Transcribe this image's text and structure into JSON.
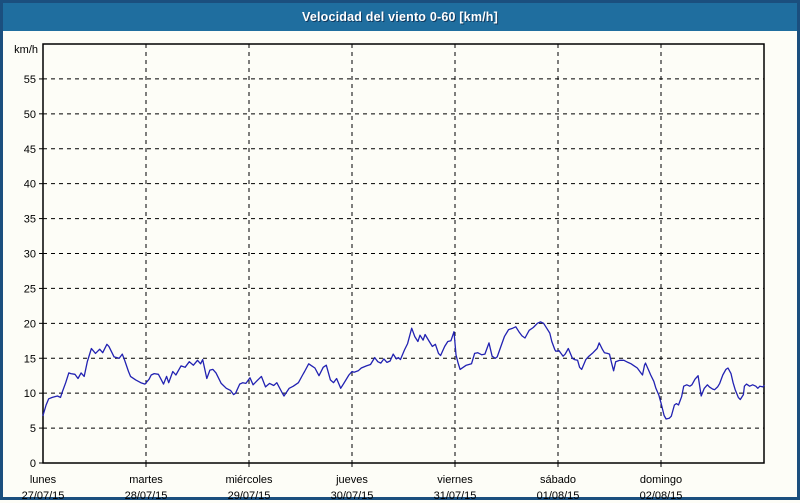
{
  "window": {
    "title": "Velocidad del viento 0-60 [km/h]"
  },
  "colors": {
    "title_bar": "#1f6e9f",
    "frame": "#1b4f7e",
    "line": "#2222b2",
    "grid": "#000000",
    "background": "#fdfdf7"
  },
  "chart_data": {
    "type": "line",
    "title": "Velocidad del viento 0-60 [km/h]",
    "ylabel": "km/h",
    "xlabel": "",
    "ylim": [
      0,
      60
    ],
    "y_ticks": [
      0,
      5,
      10,
      15,
      20,
      25,
      30,
      35,
      40,
      45,
      50,
      55
    ],
    "grid": "dashed",
    "legend": "none",
    "x_axis_days": [
      {
        "name": "lunes",
        "date": "27/07/15"
      },
      {
        "name": "martes",
        "date": "28/07/15"
      },
      {
        "name": "miércoles",
        "date": "29/07/15"
      },
      {
        "name": "jueves",
        "date": "30/07/15"
      },
      {
        "name": "viernes",
        "date": "31/07/15"
      },
      {
        "name": "sábado",
        "date": "01/08/15"
      },
      {
        "name": "domingo",
        "date": "02/08/15"
      }
    ],
    "series": [
      {
        "name": "Velocidad del viento",
        "color": "#2222b2",
        "x_unit": "days (0 = lunes 27/07/15 00:00)",
        "points": [
          [
            0.0,
            6.8
          ],
          [
            0.03,
            8.3
          ],
          [
            0.055,
            9.2
          ],
          [
            0.09,
            9.4
          ],
          [
            0.14,
            9.6
          ],
          [
            0.17,
            9.4
          ],
          [
            0.19,
            10.3
          ],
          [
            0.22,
            11.5
          ],
          [
            0.25,
            12.9
          ],
          [
            0.27,
            12.8
          ],
          [
            0.31,
            12.7
          ],
          [
            0.34,
            12.1
          ],
          [
            0.37,
            12.9
          ],
          [
            0.4,
            12.4
          ],
          [
            0.43,
            14.5
          ],
          [
            0.47,
            16.4
          ],
          [
            0.51,
            15.7
          ],
          [
            0.55,
            16.3
          ],
          [
            0.58,
            15.8
          ],
          [
            0.62,
            17.0
          ],
          [
            0.64,
            16.7
          ],
          [
            0.69,
            15.2
          ],
          [
            0.74,
            15.0
          ],
          [
            0.77,
            15.6
          ],
          [
            0.79,
            14.8
          ],
          [
            0.83,
            13.1
          ],
          [
            0.85,
            12.4
          ],
          [
            0.9,
            11.9
          ],
          [
            0.95,
            11.5
          ],
          [
            0.99,
            11.3
          ],
          [
            1.03,
            12.0
          ],
          [
            1.05,
            12.6
          ],
          [
            1.08,
            12.8
          ],
          [
            1.12,
            12.7
          ],
          [
            1.15,
            11.9
          ],
          [
            1.17,
            11.3
          ],
          [
            1.2,
            12.4
          ],
          [
            1.22,
            11.5
          ],
          [
            1.26,
            13.1
          ],
          [
            1.29,
            12.6
          ],
          [
            1.34,
            13.9
          ],
          [
            1.38,
            13.7
          ],
          [
            1.42,
            14.5
          ],
          [
            1.46,
            14.0
          ],
          [
            1.5,
            14.7
          ],
          [
            1.53,
            14.2
          ],
          [
            1.55,
            14.8
          ],
          [
            1.59,
            12.1
          ],
          [
            1.62,
            13.3
          ],
          [
            1.65,
            13.4
          ],
          [
            1.68,
            12.9
          ],
          [
            1.73,
            11.4
          ],
          [
            1.78,
            10.7
          ],
          [
            1.82,
            10.4
          ],
          [
            1.85,
            9.8
          ],
          [
            1.87,
            10.0
          ],
          [
            1.91,
            11.3
          ],
          [
            1.94,
            11.5
          ],
          [
            1.97,
            11.4
          ],
          [
            2.01,
            12.2
          ],
          [
            2.04,
            11.2
          ],
          [
            2.08,
            11.8
          ],
          [
            2.12,
            12.4
          ],
          [
            2.16,
            10.9
          ],
          [
            2.2,
            11.4
          ],
          [
            2.24,
            11.1
          ],
          [
            2.27,
            11.5
          ],
          [
            2.32,
            10.1
          ],
          [
            2.34,
            9.6
          ],
          [
            2.39,
            10.7
          ],
          [
            2.43,
            11.0
          ],
          [
            2.48,
            11.5
          ],
          [
            2.52,
            12.6
          ],
          [
            2.54,
            13.1
          ],
          [
            2.58,
            14.2
          ],
          [
            2.61,
            13.9
          ],
          [
            2.64,
            13.6
          ],
          [
            2.68,
            12.5
          ],
          [
            2.72,
            13.7
          ],
          [
            2.75,
            14.0
          ],
          [
            2.79,
            11.9
          ],
          [
            2.82,
            11.5
          ],
          [
            2.85,
            12.1
          ],
          [
            2.89,
            10.7
          ],
          [
            2.92,
            11.4
          ],
          [
            2.97,
            12.6
          ],
          [
            3.0,
            13.1
          ],
          [
            3.02,
            13.0
          ],
          [
            3.06,
            13.2
          ],
          [
            3.09,
            13.6
          ],
          [
            3.14,
            13.9
          ],
          [
            3.18,
            14.1
          ],
          [
            3.22,
            15.1
          ],
          [
            3.25,
            14.5
          ],
          [
            3.28,
            14.3
          ],
          [
            3.31,
            14.9
          ],
          [
            3.34,
            14.4
          ],
          [
            3.37,
            14.6
          ],
          [
            3.4,
            15.6
          ],
          [
            3.43,
            14.9
          ],
          [
            3.45,
            15.1
          ],
          [
            3.47,
            14.8
          ],
          [
            3.51,
            16.2
          ],
          [
            3.54,
            17.1
          ],
          [
            3.58,
            19.3
          ],
          [
            3.61,
            18.1
          ],
          [
            3.64,
            17.4
          ],
          [
            3.66,
            18.3
          ],
          [
            3.69,
            17.6
          ],
          [
            3.71,
            18.4
          ],
          [
            3.75,
            17.4
          ],
          [
            3.78,
            16.7
          ],
          [
            3.81,
            17.0
          ],
          [
            3.84,
            15.7
          ],
          [
            3.86,
            15.4
          ],
          [
            3.9,
            16.7
          ],
          [
            3.93,
            17.4
          ],
          [
            3.96,
            17.5
          ],
          [
            3.99,
            18.8
          ],
          [
            4.01,
            15.5
          ],
          [
            4.03,
            14.3
          ],
          [
            4.05,
            13.4
          ],
          [
            4.08,
            13.7
          ],
          [
            4.11,
            14.0
          ],
          [
            4.16,
            14.2
          ],
          [
            4.19,
            15.7
          ],
          [
            4.22,
            15.8
          ],
          [
            4.26,
            15.5
          ],
          [
            4.29,
            15.6
          ],
          [
            4.33,
            17.2
          ],
          [
            4.36,
            15.3
          ],
          [
            4.39,
            15.0
          ],
          [
            4.41,
            15.2
          ],
          [
            4.45,
            16.9
          ],
          [
            4.48,
            18.1
          ],
          [
            4.52,
            19.1
          ],
          [
            4.56,
            19.3
          ],
          [
            4.59,
            19.5
          ],
          [
            4.62,
            18.8
          ],
          [
            4.65,
            18.2
          ],
          [
            4.68,
            17.9
          ],
          [
            4.72,
            19.0
          ],
          [
            4.76,
            19.4
          ],
          [
            4.8,
            20.0
          ],
          [
            4.83,
            20.2
          ],
          [
            4.86,
            20.0
          ],
          [
            4.89,
            19.3
          ],
          [
            4.92,
            18.6
          ],
          [
            4.94,
            17.4
          ],
          [
            4.97,
            16.2
          ],
          [
            4.98,
            16.0
          ],
          [
            5.01,
            16.1
          ],
          [
            5.05,
            15.3
          ],
          [
            5.07,
            15.6
          ],
          [
            5.1,
            16.4
          ],
          [
            5.14,
            15.0
          ],
          [
            5.16,
            14.8
          ],
          [
            5.19,
            14.7
          ],
          [
            5.21,
            13.7
          ],
          [
            5.23,
            13.4
          ],
          [
            5.27,
            14.8
          ],
          [
            5.3,
            15.3
          ],
          [
            5.34,
            15.8
          ],
          [
            5.38,
            16.4
          ],
          [
            5.4,
            17.2
          ],
          [
            5.43,
            16.3
          ],
          [
            5.45,
            15.8
          ],
          [
            5.48,
            15.7
          ],
          [
            5.5,
            15.6
          ],
          [
            5.52,
            14.3
          ],
          [
            5.54,
            13.2
          ],
          [
            5.56,
            14.5
          ],
          [
            5.6,
            14.7
          ],
          [
            5.64,
            14.7
          ],
          [
            5.68,
            14.4
          ],
          [
            5.71,
            14.2
          ],
          [
            5.74,
            13.9
          ],
          [
            5.77,
            13.6
          ],
          [
            5.8,
            13.0
          ],
          [
            5.82,
            12.6
          ],
          [
            5.84,
            14.0
          ],
          [
            5.85,
            14.3
          ],
          [
            5.88,
            13.3
          ],
          [
            5.9,
            12.6
          ],
          [
            5.93,
            11.7
          ],
          [
            5.95,
            10.7
          ],
          [
            5.98,
            9.7
          ],
          [
            6.0,
            8.6
          ],
          [
            6.03,
            6.8
          ],
          [
            6.05,
            6.3
          ],
          [
            6.08,
            6.4
          ],
          [
            6.1,
            6.7
          ],
          [
            6.13,
            8.3
          ],
          [
            6.15,
            8.5
          ],
          [
            6.17,
            8.3
          ],
          [
            6.2,
            9.5
          ],
          [
            6.22,
            11.0
          ],
          [
            6.25,
            11.2
          ],
          [
            6.28,
            11.0
          ],
          [
            6.3,
            11.2
          ],
          [
            6.33,
            12.0
          ],
          [
            6.36,
            12.5
          ],
          [
            6.39,
            9.6
          ],
          [
            6.42,
            10.7
          ],
          [
            6.45,
            11.2
          ],
          [
            6.47,
            10.9
          ],
          [
            6.5,
            10.6
          ],
          [
            6.52,
            10.5
          ],
          [
            6.55,
            10.9
          ],
          [
            6.57,
            11.4
          ],
          [
            6.6,
            12.6
          ],
          [
            6.63,
            13.4
          ],
          [
            6.65,
            13.6
          ],
          [
            6.68,
            12.8
          ],
          [
            6.7,
            11.5
          ],
          [
            6.72,
            10.5
          ],
          [
            6.75,
            9.4
          ],
          [
            6.77,
            9.1
          ],
          [
            6.8,
            9.8
          ],
          [
            6.81,
            11.0
          ],
          [
            6.83,
            11.3
          ],
          [
            6.86,
            11.0
          ],
          [
            6.89,
            11.2
          ],
          [
            6.92,
            11.0
          ],
          [
            6.94,
            10.7
          ],
          [
            6.96,
            11.0
          ],
          [
            6.99,
            10.9
          ],
          [
            7.0,
            11.1
          ]
        ]
      }
    ]
  }
}
